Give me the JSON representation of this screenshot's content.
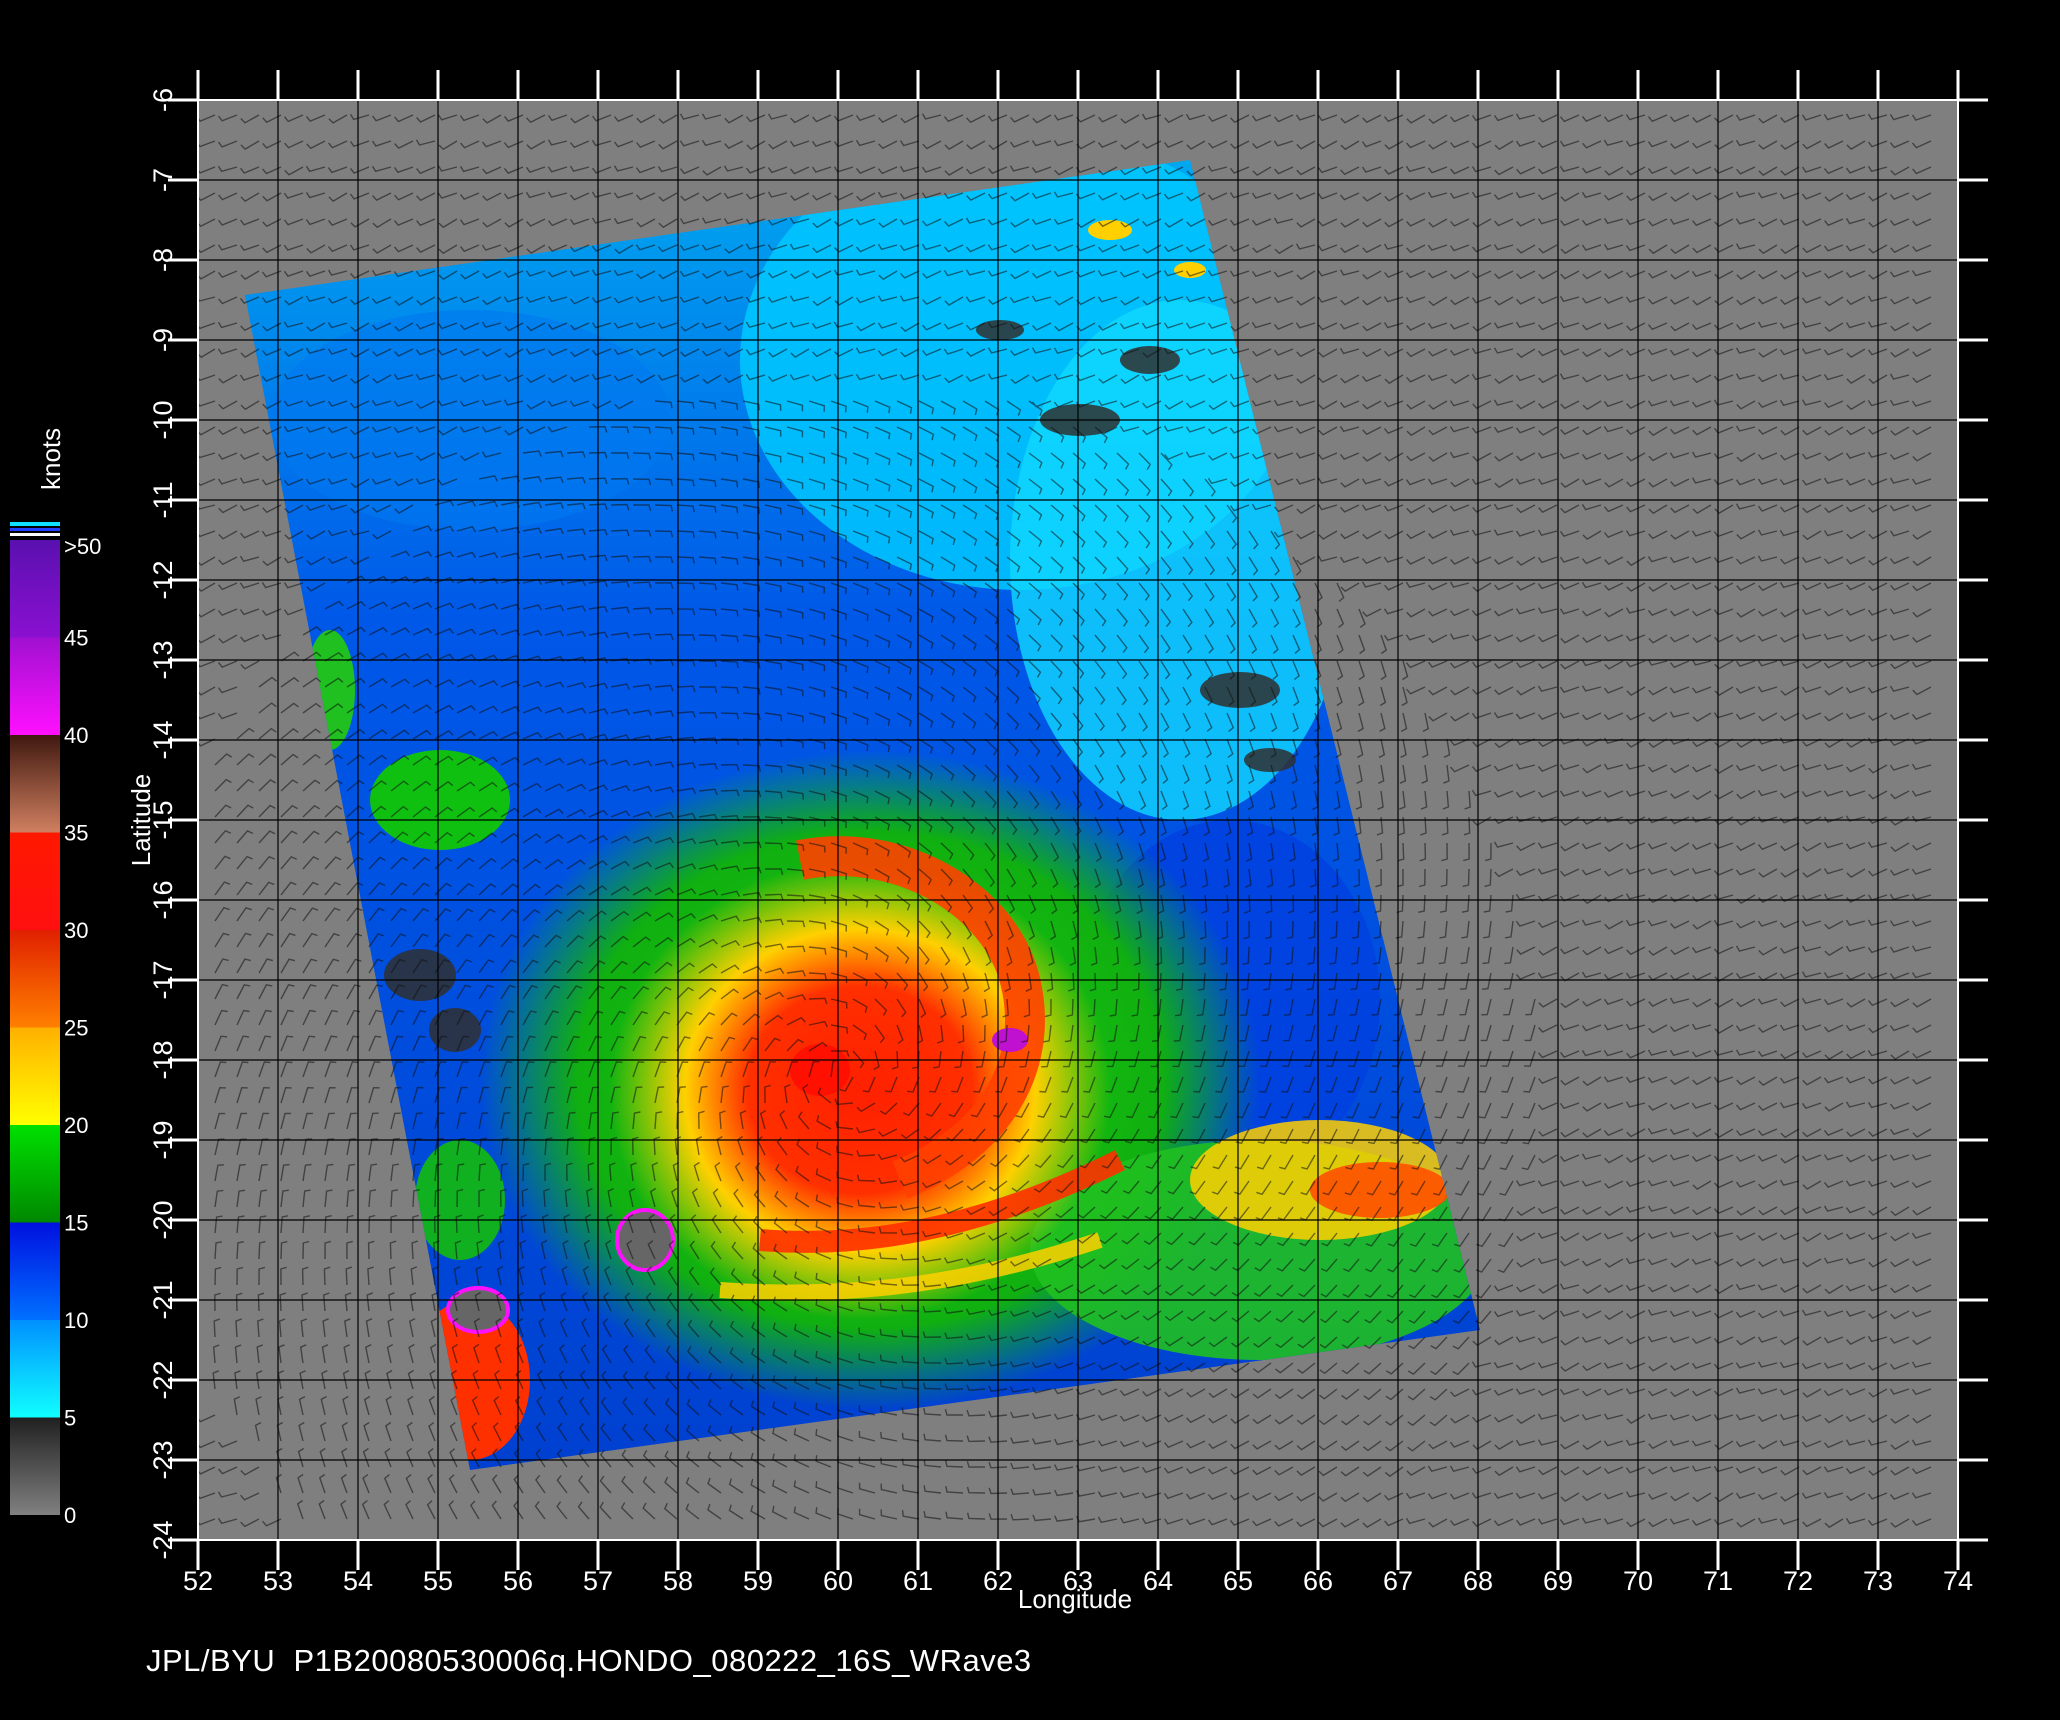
{
  "caption": "JPL/BYU  P1B20080530006q.HONDO_080222_16S_WRave3",
  "axes": {
    "xlabel": "Longitude",
    "ylabel": "Latitude",
    "x_ticks": [
      "52",
      "53",
      "54",
      "55",
      "56",
      "57",
      "58",
      "59",
      "60",
      "61",
      "62",
      "63",
      "64",
      "65",
      "66",
      "67",
      "68",
      "69",
      "70",
      "71",
      "72",
      "73",
      "74"
    ],
    "y_ticks": [
      "-6",
      "-7",
      "-8",
      "-9",
      "-10",
      "-11",
      "-12",
      "-13",
      "-14",
      "-15",
      "-16",
      "-17",
      "-18",
      "-19",
      "-20",
      "-21",
      "-22",
      "-23",
      "-24"
    ],
    "xlim": [
      52,
      74
    ],
    "ylim": [
      -24,
      -6
    ]
  },
  "colorbar": {
    "title": "knots",
    "labels": [
      ">50",
      "45",
      "40",
      "35",
      "30",
      "25",
      "20",
      "15",
      "10",
      "5",
      "0"
    ],
    "bands": [
      {
        "from": 45,
        "to": 50,
        "top": "#5a10b0",
        "bottom": "#8a10d0"
      },
      {
        "from": 40,
        "to": 45,
        "top": "#a010d0",
        "bottom": "#ff10ff"
      },
      {
        "from": 35,
        "to": 40,
        "top": "#401810",
        "bottom": "#d08060"
      },
      {
        "from": 30,
        "to": 35,
        "top": "#ff1800",
        "bottom": "#ff1010"
      },
      {
        "from": 25,
        "to": 30,
        "top": "#e02000",
        "bottom": "#ff8000"
      },
      {
        "from": 20,
        "to": 25,
        "top": "#ffb000",
        "bottom": "#ffff00"
      },
      {
        "from": 15,
        "to": 20,
        "top": "#00e000",
        "bottom": "#008800"
      },
      {
        "from": 10,
        "to": 15,
        "top": "#0010e0",
        "bottom": "#0070ff"
      },
      {
        "from": 5,
        "to": 10,
        "top": "#0090ff",
        "bottom": "#10ffff"
      },
      {
        "from": 0,
        "to": 5,
        "top": "#202020",
        "bottom": "#808080"
      }
    ]
  },
  "colors": {
    "background": "#000000",
    "land_nodata": "#7f7f7f",
    "grid": "#000000",
    "text": "#ffffff"
  }
}
